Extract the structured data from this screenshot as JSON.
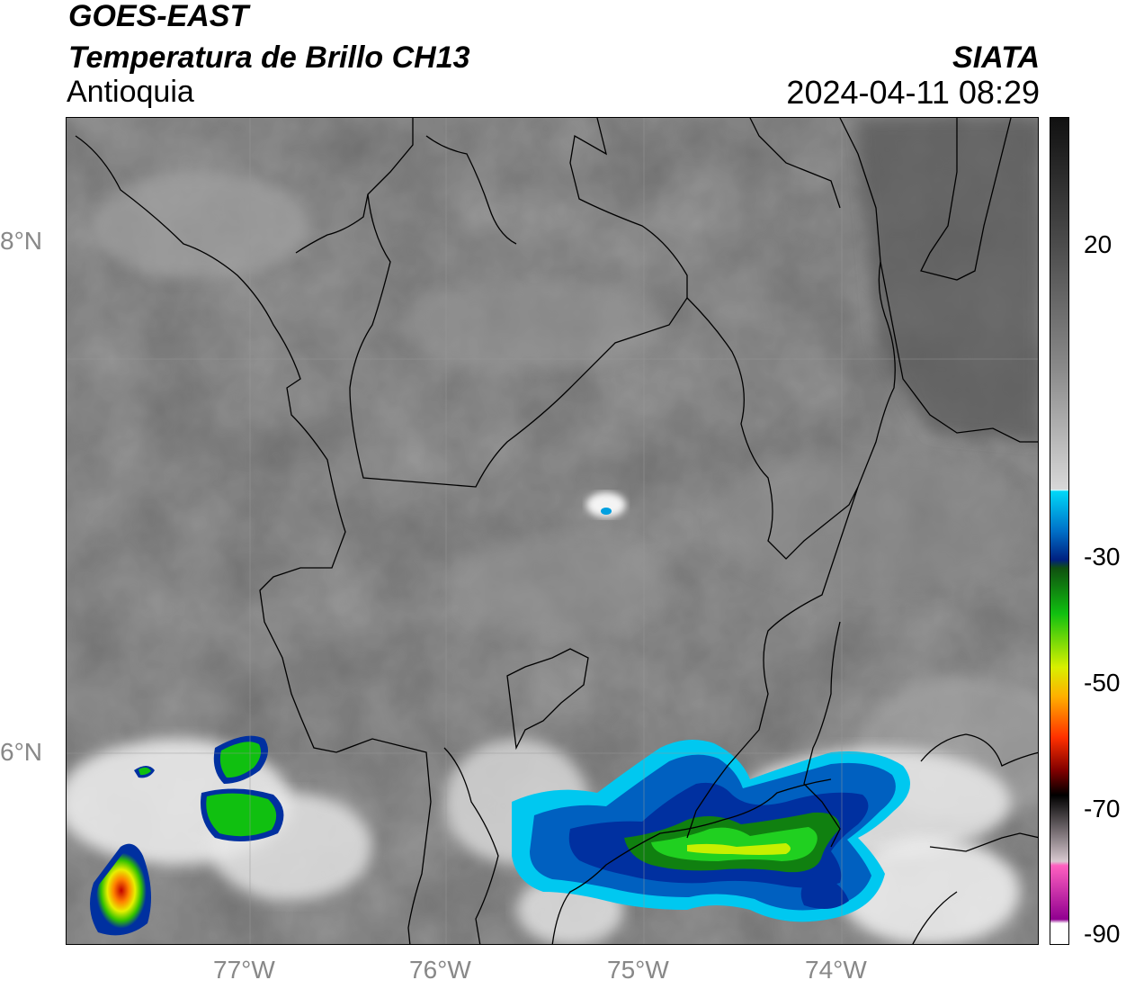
{
  "header": {
    "satellite": "GOES-EAST",
    "product": "Temperatura de Brillo CH13",
    "region": "Antioquia",
    "organization": "SIATA",
    "datetime": "2024-04-11 08:29"
  },
  "map": {
    "lat_labels": [
      "8°N",
      "6°N"
    ],
    "lon_labels": [
      "77°W",
      "76°W",
      "75°W",
      "74°W"
    ],
    "lat_range": [
      5.1,
      9.3
    ],
    "lon_range": [
      -77.8,
      -72.9
    ]
  },
  "colorbar": {
    "tick_labels": [
      "20",
      "-30",
      "-50",
      "-70",
      "-90"
    ],
    "colors": {
      "warm_dark": "#1a1a1a",
      "gray": "#7d7d7d",
      "white": "#ffffff",
      "cyan": "#00c8f0",
      "blue": "#0030a0",
      "green": "#10c010",
      "yellow": "#e8f000",
      "orange": "#ff8000",
      "red": "#e00000",
      "black": "#000000",
      "pink": "#e060c0",
      "purple": "#900090"
    }
  }
}
